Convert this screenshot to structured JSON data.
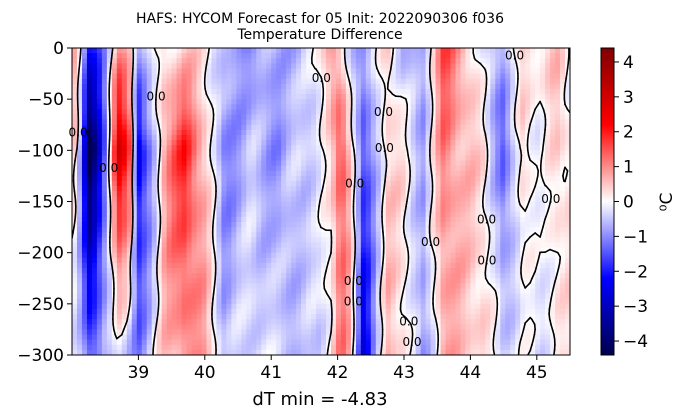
{
  "chart_data": {
    "type": "heatmap",
    "title": "HAFS: HYCOM Forecast for 05 Init: 2022090306 f036",
    "subtitle": "Temperature Difference",
    "xlabel": "dT min = -4.83",
    "ylabel": "",
    "xlim": [
      38.0,
      45.5
    ],
    "ylim": [
      -300,
      0
    ],
    "x_ticks": [
      "39",
      "40",
      "41",
      "42",
      "43",
      "44",
      "45"
    ],
    "y_ticks": [
      "0",
      "−50",
      "−100",
      "−150",
      "−200",
      "−250",
      "−300"
    ],
    "colorbar": {
      "label": "⁰C",
      "min": -4.4,
      "max": 4.4,
      "ticks": [
        "−4",
        "−3",
        "−2",
        "−1",
        "0",
        "1",
        "2",
        "3",
        "4"
      ],
      "colormap": "seismic",
      "colors": [
        "#00004c",
        "#0000ff",
        "#ffffff",
        "#ff0000",
        "#800000"
      ]
    },
    "contour_level": 0.0,
    "contour_label": "0.0",
    "columns": [
      {
        "x": 38.05,
        "top": 0.6,
        "mid": 0.2,
        "bot": -0.2
      },
      {
        "x": 38.15,
        "top": -0.5,
        "mid": -1.2,
        "bot": -0.8
      },
      {
        "x": 38.25,
        "top": -2.2,
        "mid": -4.6,
        "bot": -1.6
      },
      {
        "x": 38.35,
        "top": -1.8,
        "mid": -3.6,
        "bot": -1.4
      },
      {
        "x": 38.5,
        "top": -0.8,
        "mid": -1.5,
        "bot": -0.4
      },
      {
        "x": 38.7,
        "top": 0.8,
        "mid": 3.0,
        "bot": -0.2
      },
      {
        "x": 38.85,
        "top": 0.6,
        "mid": 2.2,
        "bot": -0.8
      },
      {
        "x": 39.0,
        "top": -0.7,
        "mid": -2.6,
        "bot": -1.2
      },
      {
        "x": 39.2,
        "top": -0.3,
        "mid": -1.0,
        "bot": -0.3
      },
      {
        "x": 39.4,
        "top": 0.3,
        "mid": 1.0,
        "bot": 0.5
      },
      {
        "x": 39.7,
        "top": 0.4,
        "mid": 2.0,
        "bot": 1.1
      },
      {
        "x": 40.0,
        "top": 0.2,
        "mid": 0.6,
        "bot": 0.8
      },
      {
        "x": 40.3,
        "top": -0.6,
        "mid": -1.2,
        "bot": -0.6
      },
      {
        "x": 40.7,
        "top": -1.0,
        "mid": -0.5,
        "bot": -0.2
      },
      {
        "x": 41.1,
        "top": -0.6,
        "mid": -1.0,
        "bot": -0.4
      },
      {
        "x": 41.4,
        "top": -0.8,
        "mid": -0.4,
        "bot": -0.6
      },
      {
        "x": 41.7,
        "top": 0.2,
        "mid": -0.3,
        "bot": -0.5
      },
      {
        "x": 41.9,
        "top": 0.8,
        "mid": 0.2,
        "bot": 0.2
      },
      {
        "x": 42.05,
        "top": 0.2,
        "mid": 1.8,
        "bot": 1.2
      },
      {
        "x": 42.2,
        "top": -0.4,
        "mid": 0.6,
        "bot": 0.5
      },
      {
        "x": 42.4,
        "top": -0.8,
        "mid": -1.8,
        "bot": -2.6
      },
      {
        "x": 42.55,
        "top": -0.4,
        "mid": -0.8,
        "bot": -1.0
      },
      {
        "x": 42.75,
        "top": 0.5,
        "mid": 0.4,
        "bot": 0.6
      },
      {
        "x": 43.0,
        "top": -0.8,
        "mid": 0.2,
        "bot": 0.3
      },
      {
        "x": 43.3,
        "top": -0.6,
        "mid": -0.8,
        "bot": -1.0
      },
      {
        "x": 43.6,
        "top": 1.6,
        "mid": 1.2,
        "bot": 0.8
      },
      {
        "x": 43.9,
        "top": 0.8,
        "mid": 0.6,
        "bot": 0.5
      },
      {
        "x": 44.2,
        "top": -0.4,
        "mid": 0.3,
        "bot": 0.4
      },
      {
        "x": 44.5,
        "top": -0.6,
        "mid": -1.6,
        "bot": -0.3
      },
      {
        "x": 44.8,
        "top": 0.3,
        "mid": 0.5,
        "bot": -0.2
      },
      {
        "x": 45.05,
        "top": 0.4,
        "mid": -0.3,
        "bot": -0.3
      },
      {
        "x": 45.3,
        "top": 0.5,
        "mid": 0.4,
        "bot": 0.2
      },
      {
        "x": 45.5,
        "top": -0.2,
        "mid": 0.3,
        "bot": 0.1
      }
    ]
  }
}
